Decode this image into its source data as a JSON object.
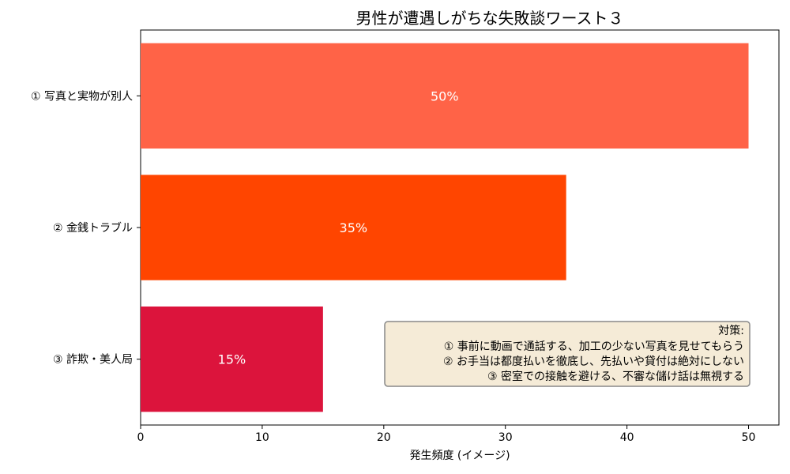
{
  "chart_data": {
    "type": "bar",
    "orientation": "horizontal",
    "title": "男性が遭遇しがちな失敗談ワースト３",
    "xlabel": "発生頻度 (イメージ)",
    "ylabel": "",
    "xlim": [
      0,
      52.5
    ],
    "x_ticks": [
      0,
      10,
      20,
      30,
      40,
      50
    ],
    "categories": [
      "① 写真と実物が別人",
      "② 金銭トラブル",
      "③ 詐欺・美人局"
    ],
    "values": [
      50,
      35,
      15
    ],
    "value_labels": [
      "50%",
      "35%",
      "15%"
    ],
    "colors": [
      "#FF6347",
      "#FF4500",
      "#DC143C"
    ],
    "grid": false,
    "annotation": {
      "lines": [
        "対策:",
        "① 事前に動画で通話する、加工の少ない写真を見せてもらう",
        "② お手当は都度払いを徹底し、先払いや貸付は絶対にしない",
        "③ 密室での接触を避ける、不審な儲け話は無視する"
      ],
      "background": "#F5EBD7",
      "border": "#888888",
      "placement": "bottom-right"
    }
  }
}
